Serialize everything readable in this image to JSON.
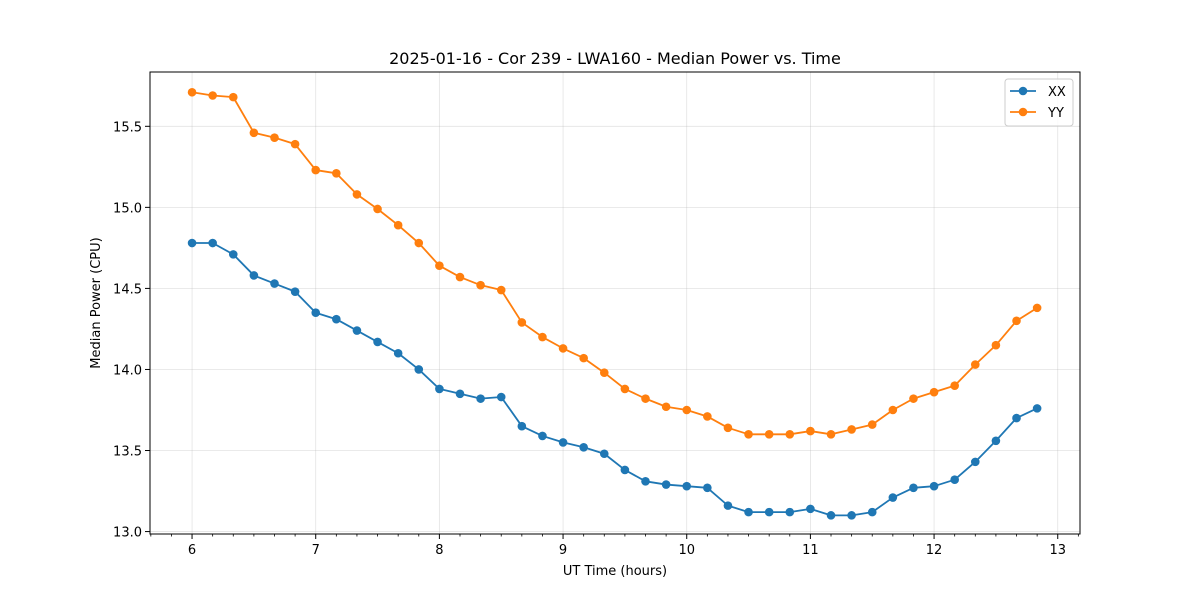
{
  "chart_data": {
    "type": "line",
    "title": "2025-01-16 - Cor 239 - LWA160 - Median Power vs. Time",
    "xlabel": "UT Time (hours)",
    "ylabel": "Median Power (CPU)",
    "xlim": [
      5.66,
      13.18
    ],
    "ylim": [
      12.985,
      15.835
    ],
    "xticks": [
      6,
      7,
      8,
      9,
      10,
      11,
      12,
      13
    ],
    "xtick_labels": [
      "6",
      "7",
      "8",
      "9",
      "10",
      "11",
      "12",
      "13"
    ],
    "yticks": [
      13.0,
      13.5,
      14.0,
      14.5,
      15.0,
      15.5
    ],
    "ytick_labels": [
      "13.0",
      "13.5",
      "14.0",
      "14.5",
      "15.0",
      "15.5"
    ],
    "grid": true,
    "legend_position": "top-right",
    "x": [
      6.0,
      6.1667,
      6.3333,
      6.5,
      6.6667,
      6.8333,
      7.0,
      7.1667,
      7.3333,
      7.5,
      7.6667,
      7.8333,
      8.0,
      8.1667,
      8.3333,
      8.5,
      8.6667,
      8.8333,
      9.0,
      9.1667,
      9.3333,
      9.5,
      9.6667,
      9.8333,
      10.0,
      10.1667,
      10.3333,
      10.5,
      10.6667,
      10.8333,
      11.0,
      11.1667,
      11.3333,
      11.5,
      11.6667,
      11.8333,
      12.0,
      12.1667,
      12.3333,
      12.5,
      12.6667,
      12.8333
    ],
    "series": [
      {
        "name": "XX",
        "color": "#1f77b4",
        "values": [
          14.78,
          14.78,
          14.71,
          14.58,
          14.53,
          14.48,
          14.35,
          14.31,
          14.24,
          14.17,
          14.1,
          14.0,
          13.88,
          13.85,
          13.82,
          13.83,
          13.65,
          13.59,
          13.55,
          13.52,
          13.48,
          13.38,
          13.31,
          13.29,
          13.28,
          13.27,
          13.16,
          13.12,
          13.12,
          13.12,
          13.14,
          13.1,
          13.1,
          13.12,
          13.21,
          13.27,
          13.28,
          13.32,
          13.43,
          13.56,
          13.7,
          13.76
        ]
      },
      {
        "name": "YY",
        "color": "#ff7f0e",
        "values": [
          15.71,
          15.69,
          15.68,
          15.46,
          15.43,
          15.39,
          15.23,
          15.21,
          15.08,
          14.99,
          14.89,
          14.78,
          14.64,
          14.57,
          14.52,
          14.49,
          14.29,
          14.2,
          14.13,
          14.07,
          13.98,
          13.88,
          13.82,
          13.77,
          13.75,
          13.71,
          13.64,
          13.6,
          13.6,
          13.6,
          13.62,
          13.6,
          13.63,
          13.66,
          13.75,
          13.82,
          13.86,
          13.9,
          14.03,
          14.15,
          14.3,
          14.38
        ]
      }
    ]
  }
}
